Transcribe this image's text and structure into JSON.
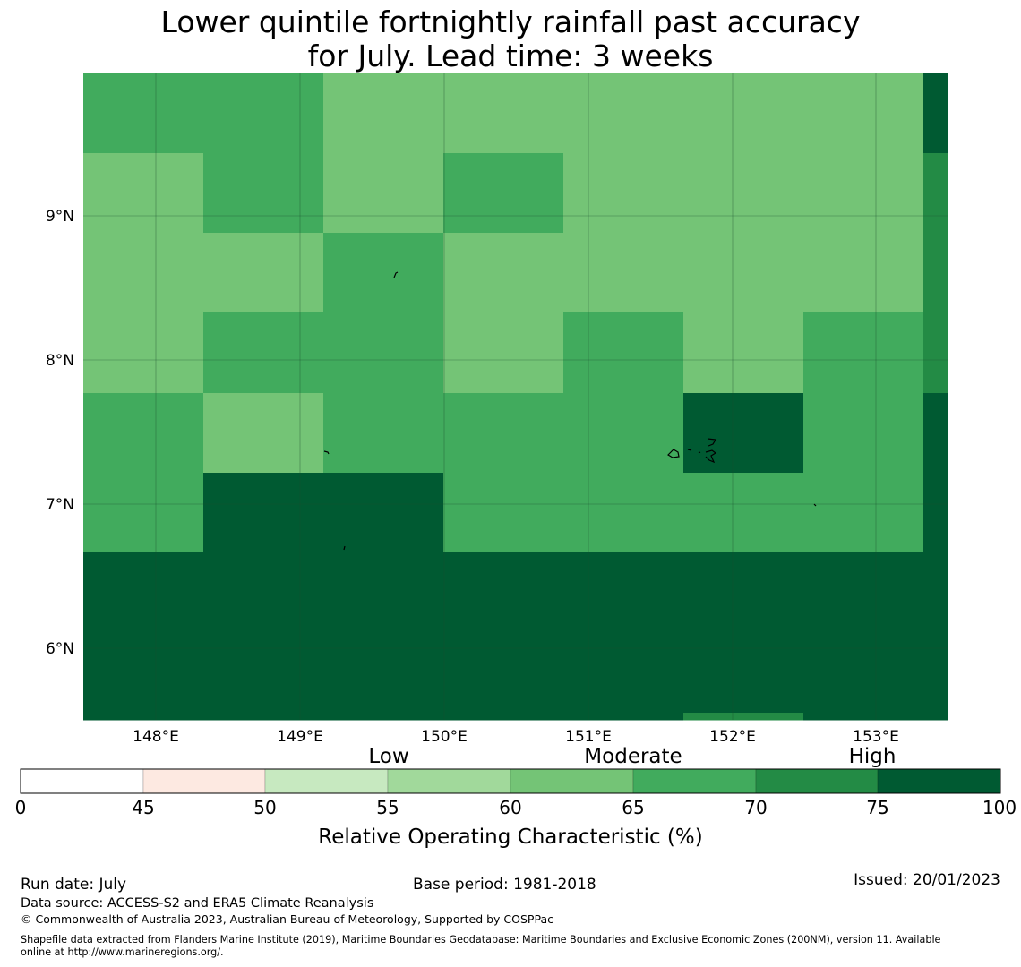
{
  "title": {
    "line1": "Lower quintile fortnightly rainfall past accuracy",
    "line2": "for July. Lead time: 3 weeks"
  },
  "map": {
    "lat_ticks": [
      "9°N",
      "8°N",
      "7°N",
      "6°N"
    ],
    "lon_ticks": [
      "148°E",
      "149°E",
      "150°E",
      "151°E",
      "152°E",
      "153°E"
    ],
    "grid_rows_north_to_south": [
      [
        65,
        65,
        60,
        60,
        60,
        60,
        60,
        75
      ],
      [
        60,
        65,
        60,
        65,
        60,
        60,
        60,
        70
      ],
      [
        60,
        60,
        65,
        60,
        60,
        60,
        60,
        70
      ],
      [
        60,
        65,
        65,
        60,
        65,
        60,
        65,
        70
      ],
      [
        65,
        60,
        65,
        65,
        65,
        75,
        65,
        75
      ],
      [
        65,
        75,
        75,
        65,
        65,
        65,
        65,
        75
      ],
      [
        75,
        75,
        100,
        100,
        100,
        75,
        100,
        75
      ],
      [
        75,
        100,
        75,
        75,
        100,
        100,
        100,
        75
      ],
      [
        100,
        100,
        100,
        100,
        100,
        70,
        100,
        100
      ]
    ]
  },
  "colorbar": {
    "category_labels": [
      "Low",
      "Moderate",
      "High"
    ],
    "tick_labels": [
      "0",
      "45",
      "50",
      "55",
      "60",
      "65",
      "70",
      "75",
      "100"
    ],
    "label": "Relative Operating Characteristic (%)",
    "colors": [
      "#ffffff",
      "#fde9e1",
      "#c7e9c0",
      "#a1d99b",
      "#74c476",
      "#41ab5d",
      "#238b45",
      "#005a32"
    ]
  },
  "footer": {
    "run_date": "Run date: July",
    "base_period": "Base period: 1981-2018",
    "issued": "Issued: 20/01/2023",
    "data_source": "Data source: ACCESS-S2 and ERA5 Climate Reanalysis",
    "copyright": "© Commonwealth of Australia 2023, Australian Bureau of Meteorology, Supported by COSPPac",
    "shapefile_line1": "Shapefile data extracted from Flanders Marine Institute (2019), Maritime Boundaries Geodatabase: Maritime Boundaries and Exclusive Economic Zones (200NM), version 11. Available",
    "shapefile_line2": "online at http://www.marineregions.org/."
  }
}
